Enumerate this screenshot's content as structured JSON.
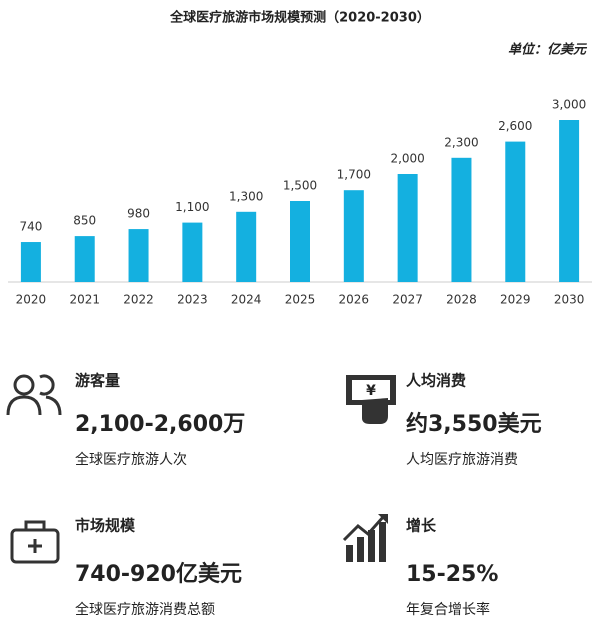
{
  "chart_data": {
    "type": "bar",
    "title": "全球医疗旅游市场规模预测（2020-2030）",
    "unit": "单位：亿美元",
    "categories": [
      "2020",
      "2021",
      "2022",
      "2023",
      "2024",
      "2025",
      "2026",
      "2027",
      "2028",
      "2029",
      "2030"
    ],
    "values": [
      740,
      850,
      980,
      1100,
      1300,
      1500,
      1700,
      2000,
      2300,
      2600,
      3000
    ],
    "value_labels": [
      "740",
      "850",
      "980",
      "1,100",
      "1,300",
      "1,500",
      "1,700",
      "2,000",
      "2,300",
      "2,600",
      "3,000"
    ],
    "color": "#14b0e0",
    "ylim": [
      0,
      3000
    ]
  },
  "stats": [
    {
      "label": "游客量",
      "value": "2,100-2,600万",
      "desc": "全球医疗旅游人次"
    },
    {
      "label": "人均消费",
      "value": "约3,550美元",
      "desc": "人均医疗旅游消费"
    },
    {
      "label": "市场规模",
      "value": "740-920亿美元",
      "desc": "全球医疗旅游消费总额"
    },
    {
      "label": "增长",
      "value": "15-25%",
      "desc": "年复合增长率"
    }
  ]
}
